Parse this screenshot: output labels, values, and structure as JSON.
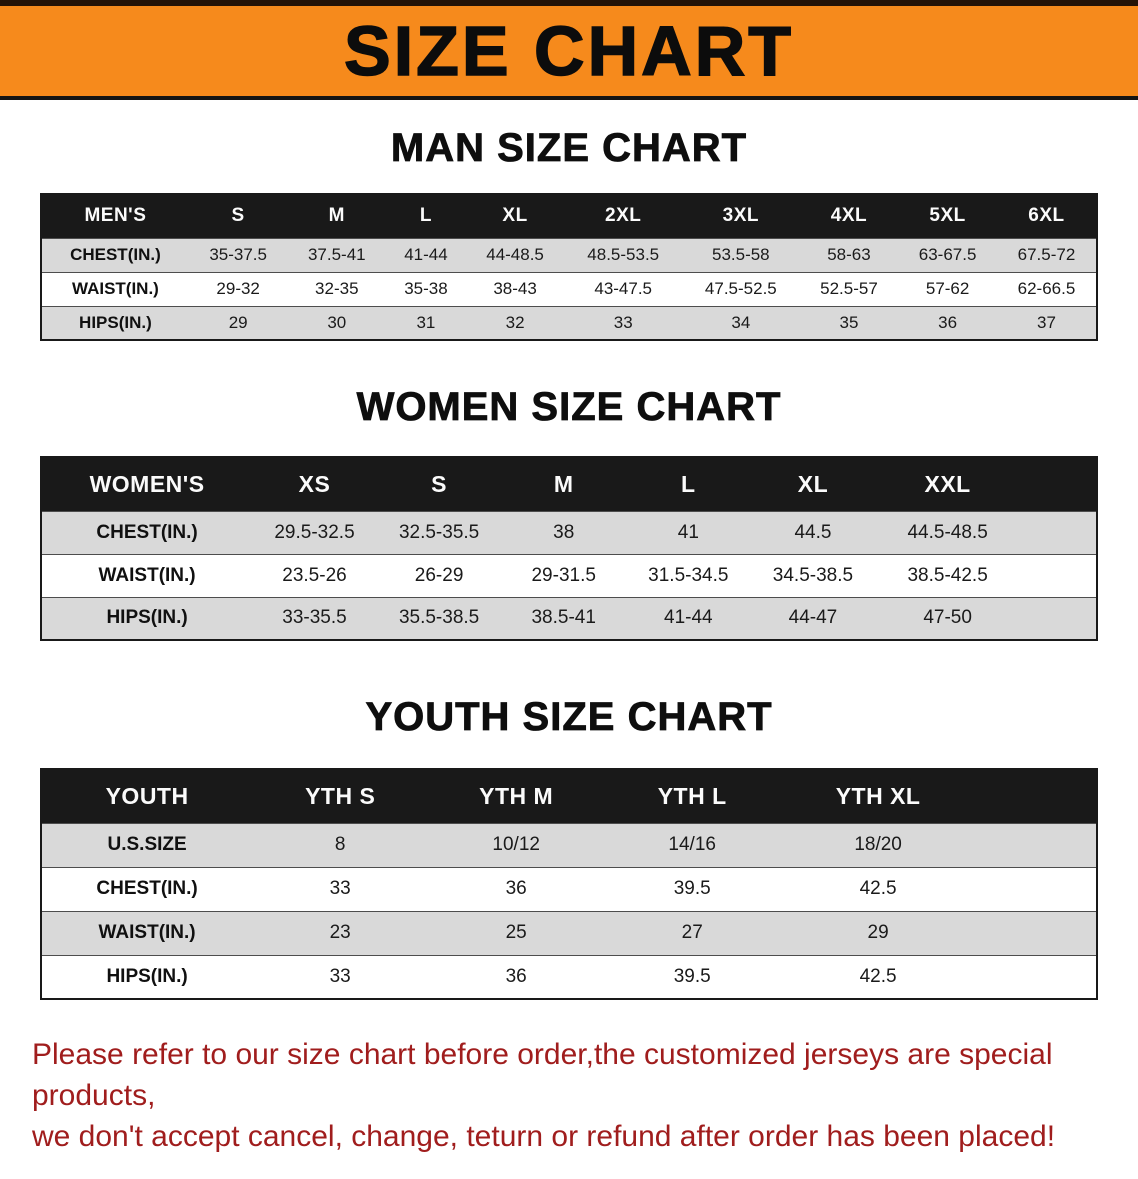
{
  "banner": {
    "title": "SIZE CHART"
  },
  "colors": {
    "banner_orange": "#f68a1c",
    "table_header_black": "#191919",
    "row_shade_gray": "#d9d9d9",
    "footnote_red": "#a01d1d"
  },
  "chart_data": [
    {
      "type": "table",
      "title": "MAN SIZE CHART",
      "header": [
        "MEN'S",
        "S",
        "M",
        "L",
        "XL",
        "2XL",
        "3XL",
        "4XL",
        "5XL",
        "6XL"
      ],
      "rows": [
        [
          "CHEST(IN.)",
          "35-37.5",
          "37.5-41",
          "41-44",
          "44-48.5",
          "48.5-53.5",
          "53.5-58",
          "58-63",
          "63-67.5",
          "67.5-72"
        ],
        [
          "WAIST(IN.)",
          "29-32",
          "32-35",
          "35-38",
          "38-43",
          "43-47.5",
          "47.5-52.5",
          "52.5-57",
          "57-62",
          "62-66.5"
        ],
        [
          "HIPS(IN.)",
          "29",
          "30",
          "31",
          "32",
          "33",
          "34",
          "35",
          "36",
          "37"
        ]
      ]
    },
    {
      "type": "table",
      "title": "WOMEN SIZE CHART",
      "header": [
        "WOMEN'S",
        "XS",
        "S",
        "M",
        "L",
        "XL",
        "XXL"
      ],
      "rows": [
        [
          "CHEST(IN.)",
          "29.5-32.5",
          "32.5-35.5",
          "38",
          "41",
          "44.5",
          "44.5-48.5"
        ],
        [
          "WAIST(IN.)",
          "23.5-26",
          "26-29",
          "29-31.5",
          "31.5-34.5",
          "34.5-38.5",
          "38.5-42.5"
        ],
        [
          "HIPS(IN.)",
          "33-35.5",
          "35.5-38.5",
          "38.5-41",
          "41-44",
          "44-47",
          "47-50"
        ]
      ]
    },
    {
      "type": "table",
      "title": "YOUTH SIZE CHART",
      "header": [
        "YOUTH",
        "YTH S",
        "YTH M",
        "YTH L",
        "YTH XL"
      ],
      "rows": [
        [
          "U.S.SIZE",
          "8",
          "10/12",
          "14/16",
          "18/20"
        ],
        [
          "CHEST(IN.)",
          "33",
          "36",
          "39.5",
          "42.5"
        ],
        [
          "WAIST(IN.)",
          "23",
          "25",
          "27",
          "29"
        ],
        [
          "HIPS(IN.)",
          "33",
          "36",
          "39.5",
          "42.5"
        ]
      ]
    }
  ],
  "footnote": {
    "lines": [
      "Please refer to our size chart before order,the customized jerseys are special products,",
      "we don't accept cancel, change, teturn or refund after order has been placed!"
    ]
  }
}
